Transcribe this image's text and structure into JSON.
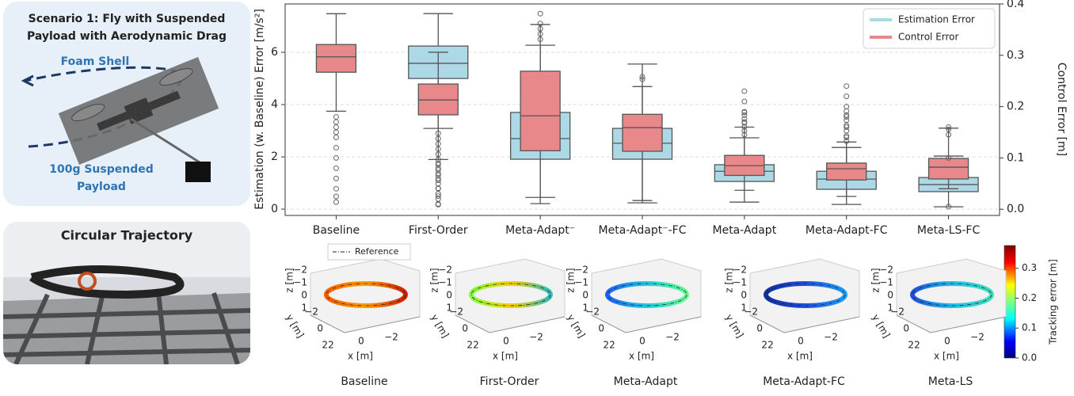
{
  "panel_left": {
    "title_lines": [
      "Scenario 1: Fly with Suspended",
      "Payload with Aerodynamic Drag"
    ],
    "shell_label": "Foam Shell",
    "payload_lines": [
      "100g Suspended",
      "Payload"
    ],
    "photo_title": "Circular Trajectory"
  },
  "chart_data": {
    "type": "box",
    "categories": [
      "Baseline",
      "First-Order",
      "Meta-Adapt⁻",
      "Meta-Adapt⁻-FC",
      "Meta-Adapt",
      "Meta-Adapt-FC",
      "Meta-LS-FC"
    ],
    "ylabel": "Estimation (w. Baseline) Error [m/s²]",
    "y2label": "Control Error [m]",
    "ylim": [
      -0.24,
      7.85
    ],
    "yticks": [
      0,
      2,
      4,
      6
    ],
    "y2lim": [
      -0.012,
      0.4
    ],
    "y2ticks": [
      {
        "value": 0,
        "label": "0.0"
      },
      0.1,
      0.2,
      0.3,
      0.4
    ],
    "grid": true,
    "legend": "upper right",
    "series": [
      {
        "name": "Estimation Error",
        "color": "#add8e6",
        "axis": "y",
        "boxes": [
          null,
          {
            "whislo": 3.09,
            "q1": 5.0,
            "med": 5.58,
            "q3": 6.24,
            "whishi": 7.48,
            "fliers": [
              2.9,
              2.7,
              2.5,
              2.3,
              2.1,
              1.9,
              1.7,
              1.5,
              1.3,
              1.1,
              0.8,
              0.5,
              0.2
            ]
          },
          {
            "whislo": 0.45,
            "q1": 1.91,
            "med": 2.7,
            "q3": 3.7,
            "whishi": 6.27,
            "fliers": [
              6.5,
              6.7,
              6.9,
              7.1,
              7.48
            ]
          },
          {
            "whislo": 0.24,
            "q1": 1.91,
            "med": 2.52,
            "q3": 3.09,
            "whishi": 5.55,
            "fliers": [
              4.97
            ]
          },
          {
            "whislo": 0.27,
            "q1": 1.06,
            "med": 1.45,
            "q3": 1.7,
            "whishi": 2.73,
            "fliers": [
              2.85,
              3.0,
              3.15,
              3.3,
              3.45,
              3.6,
              3.7
            ]
          },
          {
            "whislo": 0.18,
            "q1": 0.76,
            "med": 1.15,
            "q3": 1.45,
            "whishi": 2.36,
            "fliers": [
              2.6,
              2.8,
              3.0,
              3.2,
              3.4,
              3.6,
              3.75
            ]
          },
          {
            "whislo": 0.09,
            "q1": 0.67,
            "med": 0.94,
            "q3": 1.21,
            "whishi": 2.03,
            "fliers": [
              2.85,
              3.05
            ]
          }
        ]
      },
      {
        "name": "Control Error",
        "color": "#e8888a",
        "axis": "y2",
        "boxes": [
          {
            "whislo": 0.191,
            "q1": 0.267,
            "med": 0.297,
            "q3": 0.321,
            "whishi": 0.381,
            "fliers": [
              0.18,
              0.17,
              0.16,
              0.15,
              0.14,
              0.12,
              0.1,
              0.08,
              0.06,
              0.04,
              0.025,
              0.014
            ]
          },
          {
            "whislo": 0.097,
            "q1": 0.184,
            "med": 0.213,
            "q3": 0.244,
            "whishi": 0.306,
            "fliers": [
              0.09,
              0.08,
              0.07,
              0.06,
              0.05,
              0.04,
              0.03,
              0.02,
              0.009
            ]
          },
          {
            "whislo": 0.011,
            "q1": 0.114,
            "med": 0.182,
            "q3": 0.269,
            "whishi": 0.36,
            "fliers": []
          },
          {
            "whislo": 0.017,
            "q1": 0.113,
            "med": 0.159,
            "q3": 0.185,
            "whishi": 0.239,
            "fliers": [
              0.258
            ]
          },
          {
            "whislo": 0.037,
            "q1": 0.066,
            "med": 0.085,
            "q3": 0.105,
            "whishi": 0.16,
            "fliers": [
              0.17,
              0.19,
              0.21,
              0.23
            ]
          },
          {
            "whislo": 0.025,
            "q1": 0.057,
            "med": 0.079,
            "q3": 0.09,
            "whishi": 0.131,
            "fliers": [
              0.14,
              0.16,
              0.18,
              0.2,
              0.22,
              0.24
            ]
          },
          {
            "whislo": 0.04,
            "q1": 0.059,
            "med": 0.082,
            "q3": 0.099,
            "whishi": 0.158,
            "fliers": [
              0.1,
              0.16,
              0.005
            ]
          }
        ]
      }
    ]
  },
  "trajectories": {
    "legend": "Reference",
    "axis_labels": {
      "x": "x [m]",
      "y": "y [m]",
      "z": "z [m]"
    },
    "zticks": [
      "−2",
      "−1",
      "0",
      "1"
    ],
    "yticks": [
      "−2",
      "0",
      "2"
    ],
    "xticks": [
      "2",
      "0",
      "−2"
    ],
    "panels": [
      {
        "label": "Baseline",
        "colors": [
          "#ff6000",
          "#ffa000",
          "#d02000"
        ]
      },
      {
        "label": "First-Order",
        "colors": [
          "#80ff40",
          "#ffd000",
          "#30c0c0"
        ]
      },
      {
        "label": "Meta-Adapt",
        "colors": [
          "#2060ff",
          "#20d0e0",
          "#60ff90"
        ]
      },
      {
        "label": "Meta-Adapt-FC",
        "colors": [
          "#1030a0",
          "#2050e0",
          "#20a0ff"
        ]
      },
      {
        "label": "Meta-LS",
        "colors": [
          "#2050e0",
          "#20c0f0",
          "#40e0c0"
        ]
      }
    ],
    "colorbar": {
      "label": "Tracking error [m]",
      "lim": [
        0,
        0.376
      ],
      "ticks": [
        {
          "value": 0,
          "label": "0.0"
        },
        0.1,
        0.2,
        0.3
      ]
    }
  }
}
